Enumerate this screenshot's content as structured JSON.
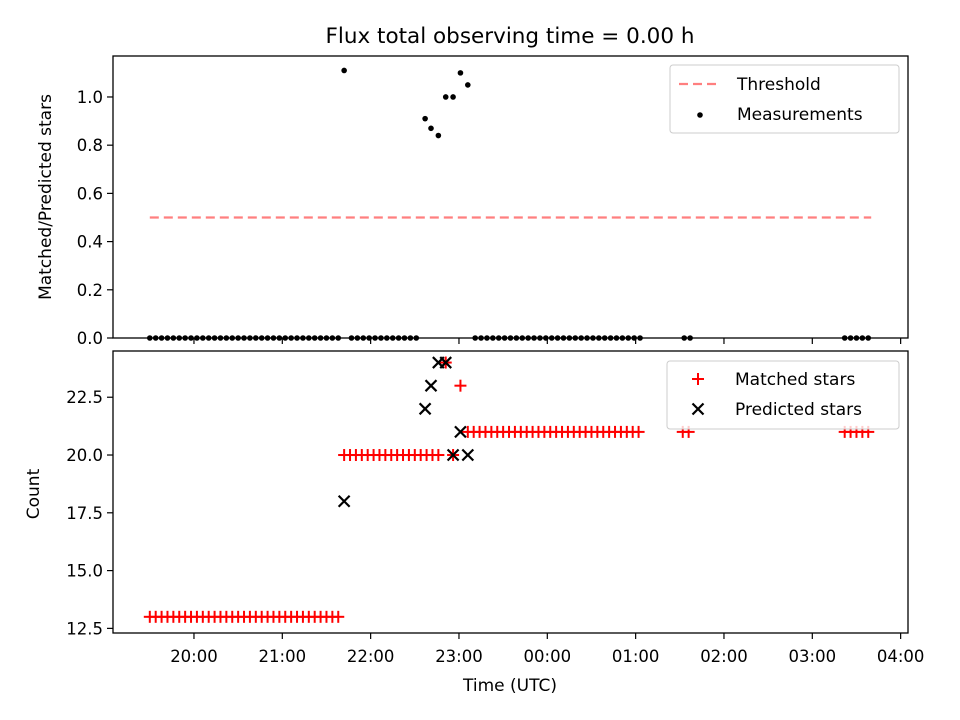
{
  "chart_data": [
    {
      "type": "scatter",
      "title": "Flux total observing time = 0.00 h",
      "xlabel": "",
      "ylabel": "Matched/Predicted stars",
      "xlim": [
        "19:05",
        "04:05"
      ],
      "ylim": [
        0,
        1.17
      ],
      "yticks": [
        0.0,
        0.2,
        0.4,
        0.6,
        0.8,
        1.0
      ],
      "ytick_labels": [
        "0.0",
        "0.2",
        "0.4",
        "0.6",
        "0.8",
        "1.0"
      ],
      "legend": {
        "placement": "upper right",
        "entries": [
          "Threshold",
          "Measurements"
        ]
      },
      "threshold": {
        "name": "Threshold",
        "y": 0.5,
        "x_start": "19:30",
        "x_end": "03:40",
        "color": "#ff7f7f",
        "style": "dashed"
      },
      "measurements": {
        "name": "Measurements",
        "color": "#000000",
        "points": [
          [
            "19:30",
            0
          ],
          [
            "19:34",
            0
          ],
          [
            "19:38",
            0
          ],
          [
            "19:42",
            0
          ],
          [
            "19:46",
            0
          ],
          [
            "19:50",
            0
          ],
          [
            "19:54",
            0
          ],
          [
            "19:58",
            0
          ],
          [
            "20:02",
            0
          ],
          [
            "20:06",
            0
          ],
          [
            "20:10",
            0
          ],
          [
            "20:14",
            0
          ],
          [
            "20:18",
            0
          ],
          [
            "20:22",
            0
          ],
          [
            "20:26",
            0
          ],
          [
            "20:30",
            0
          ],
          [
            "20:34",
            0
          ],
          [
            "20:38",
            0
          ],
          [
            "20:42",
            0
          ],
          [
            "20:46",
            0
          ],
          [
            "20:50",
            0
          ],
          [
            "20:54",
            0
          ],
          [
            "20:58",
            0
          ],
          [
            "21:02",
            0
          ],
          [
            "21:06",
            0
          ],
          [
            "21:10",
            0
          ],
          [
            "21:14",
            0
          ],
          [
            "21:18",
            0
          ],
          [
            "21:22",
            0
          ],
          [
            "21:26",
            0
          ],
          [
            "21:30",
            0
          ],
          [
            "21:34",
            0
          ],
          [
            "21:38",
            0
          ],
          [
            "21:42",
            1.11
          ],
          [
            "21:47",
            0
          ],
          [
            "21:51",
            0
          ],
          [
            "21:55",
            0
          ],
          [
            "21:59",
            0
          ],
          [
            "22:03",
            0
          ],
          [
            "22:07",
            0
          ],
          [
            "22:11",
            0
          ],
          [
            "22:15",
            0
          ],
          [
            "22:19",
            0
          ],
          [
            "22:23",
            0
          ],
          [
            "22:27",
            0
          ],
          [
            "22:31",
            0
          ],
          [
            "22:37",
            0.91
          ],
          [
            "22:41",
            0.87
          ],
          [
            "22:46",
            0.84
          ],
          [
            "22:51",
            1.0
          ],
          [
            "22:56",
            1.0
          ],
          [
            "23:01",
            1.1
          ],
          [
            "23:06",
            1.05
          ],
          [
            "23:11",
            0
          ],
          [
            "23:15",
            0
          ],
          [
            "23:19",
            0
          ],
          [
            "23:23",
            0
          ],
          [
            "23:27",
            0
          ],
          [
            "23:31",
            0
          ],
          [
            "23:35",
            0
          ],
          [
            "23:39",
            0
          ],
          [
            "23:43",
            0
          ],
          [
            "23:47",
            0
          ],
          [
            "23:51",
            0
          ],
          [
            "23:55",
            0
          ],
          [
            "23:59",
            0
          ],
          [
            "00:03",
            0
          ],
          [
            "00:07",
            0
          ],
          [
            "00:11",
            0
          ],
          [
            "00:15",
            0
          ],
          [
            "00:19",
            0
          ],
          [
            "00:23",
            0
          ],
          [
            "00:27",
            0
          ],
          [
            "00:31",
            0
          ],
          [
            "00:35",
            0
          ],
          [
            "00:39",
            0
          ],
          [
            "00:43",
            0
          ],
          [
            "00:47",
            0
          ],
          [
            "00:51",
            0
          ],
          [
            "00:55",
            0
          ],
          [
            "00:59",
            0
          ],
          [
            "01:03",
            0
          ],
          [
            "01:33",
            0
          ],
          [
            "01:37",
            0
          ],
          [
            "03:22",
            0
          ],
          [
            "03:26",
            0
          ],
          [
            "03:30",
            0
          ],
          [
            "03:34",
            0
          ],
          [
            "03:38",
            0
          ]
        ]
      }
    },
    {
      "type": "scatter",
      "title": "",
      "xlabel": "Time (UTC)",
      "ylabel": "Count",
      "xlim": [
        "19:05",
        "04:05"
      ],
      "ylim": [
        12.3,
        24.5
      ],
      "xticks": [
        "20:00",
        "21:00",
        "22:00",
        "23:00",
        "00:00",
        "01:00",
        "02:00",
        "03:00",
        "04:00"
      ],
      "yticks": [
        12.5,
        15.0,
        17.5,
        20.0,
        22.5
      ],
      "ytick_labels": [
        "12.5",
        "15.0",
        "17.5",
        "20.0",
        "22.5"
      ],
      "legend": {
        "placement": "upper right",
        "entries": [
          "Matched stars",
          "Predicted stars"
        ]
      },
      "matched": {
        "name": "Matched stars",
        "color": "#ff0000",
        "marker": "+",
        "points": [
          [
            "19:30",
            13
          ],
          [
            "19:34",
            13
          ],
          [
            "19:38",
            13
          ],
          [
            "19:42",
            13
          ],
          [
            "19:46",
            13
          ],
          [
            "19:50",
            13
          ],
          [
            "19:54",
            13
          ],
          [
            "19:58",
            13
          ],
          [
            "20:02",
            13
          ],
          [
            "20:06",
            13
          ],
          [
            "20:10",
            13
          ],
          [
            "20:14",
            13
          ],
          [
            "20:18",
            13
          ],
          [
            "20:22",
            13
          ],
          [
            "20:26",
            13
          ],
          [
            "20:30",
            13
          ],
          [
            "20:34",
            13
          ],
          [
            "20:38",
            13
          ],
          [
            "20:42",
            13
          ],
          [
            "20:46",
            13
          ],
          [
            "20:50",
            13
          ],
          [
            "20:54",
            13
          ],
          [
            "20:58",
            13
          ],
          [
            "21:02",
            13
          ],
          [
            "21:06",
            13
          ],
          [
            "21:10",
            13
          ],
          [
            "21:14",
            13
          ],
          [
            "21:18",
            13
          ],
          [
            "21:22",
            13
          ],
          [
            "21:26",
            13
          ],
          [
            "21:30",
            13
          ],
          [
            "21:34",
            13
          ],
          [
            "21:38",
            13
          ],
          [
            "21:42",
            20
          ],
          [
            "21:46",
            20
          ],
          [
            "21:50",
            20
          ],
          [
            "21:54",
            20
          ],
          [
            "21:58",
            20
          ],
          [
            "22:02",
            20
          ],
          [
            "22:06",
            20
          ],
          [
            "22:10",
            20
          ],
          [
            "22:14",
            20
          ],
          [
            "22:18",
            20
          ],
          [
            "22:22",
            20
          ],
          [
            "22:26",
            20
          ],
          [
            "22:30",
            20
          ],
          [
            "22:34",
            20
          ],
          [
            "22:38",
            20
          ],
          [
            "22:42",
            20
          ],
          [
            "22:46",
            20
          ],
          [
            "22:51",
            24
          ],
          [
            "22:56",
            20
          ],
          [
            "23:01",
            23
          ],
          [
            "23:06",
            21
          ],
          [
            "23:10",
            21
          ],
          [
            "23:14",
            21
          ],
          [
            "23:18",
            21
          ],
          [
            "23:22",
            21
          ],
          [
            "23:26",
            21
          ],
          [
            "23:30",
            21
          ],
          [
            "23:34",
            21
          ],
          [
            "23:38",
            21
          ],
          [
            "23:42",
            21
          ],
          [
            "23:46",
            21
          ],
          [
            "23:50",
            21
          ],
          [
            "23:54",
            21
          ],
          [
            "23:58",
            21
          ],
          [
            "00:02",
            21
          ],
          [
            "00:06",
            21
          ],
          [
            "00:10",
            21
          ],
          [
            "00:14",
            21
          ],
          [
            "00:18",
            21
          ],
          [
            "00:22",
            21
          ],
          [
            "00:26",
            21
          ],
          [
            "00:30",
            21
          ],
          [
            "00:34",
            21
          ],
          [
            "00:38",
            21
          ],
          [
            "00:42",
            21
          ],
          [
            "00:46",
            21
          ],
          [
            "00:50",
            21
          ],
          [
            "00:54",
            21
          ],
          [
            "00:58",
            21
          ],
          [
            "01:02",
            21
          ],
          [
            "01:32",
            21
          ],
          [
            "01:36",
            21
          ],
          [
            "03:22",
            21
          ],
          [
            "03:26",
            21
          ],
          [
            "03:30",
            21
          ],
          [
            "03:34",
            21
          ],
          [
            "03:38",
            21
          ]
        ]
      },
      "predicted": {
        "name": "Predicted stars",
        "color": "#000000",
        "marker": "x",
        "points": [
          [
            "21:42",
            18
          ],
          [
            "22:37",
            22
          ],
          [
            "22:41",
            23
          ],
          [
            "22:46",
            24
          ],
          [
            "22:51",
            24
          ],
          [
            "22:56",
            20
          ],
          [
            "23:01",
            21
          ],
          [
            "23:06",
            20
          ]
        ]
      }
    }
  ]
}
